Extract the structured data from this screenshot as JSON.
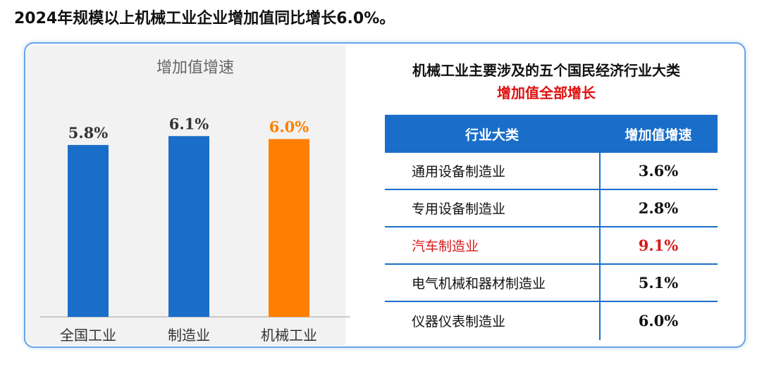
{
  "headline": "2024年规模以上机械工业企业增加值同比增长6.0%。",
  "chart_data": {
    "type": "bar",
    "title": "增加值增速",
    "categories": [
      "全国工业",
      "制造业",
      "机械工业"
    ],
    "values": [
      5.8,
      6.1,
      6.0
    ],
    "value_labels": [
      "5.8%",
      "6.1%",
      "6.0%"
    ],
    "colors": [
      "#1a6ec9",
      "#1a6ec9",
      "#ff7f00"
    ],
    "ylim": [
      0,
      6.7
    ],
    "grid": false
  },
  "right": {
    "title_line1": "机械工业主要涉及的五个国民经济行业大类",
    "title_line2": "增加值全部增长",
    "header": [
      "行业大类",
      "增加值增速"
    ],
    "rows": [
      {
        "name": "通用设备制造业",
        "value": "3.6%",
        "highlight": false
      },
      {
        "name": "专用设备制造业",
        "value": "2.8%",
        "highlight": false
      },
      {
        "name": "汽车制造业",
        "value": "9.1%",
        "highlight": true
      },
      {
        "name": "电气机械和器材制造业",
        "value": "5.1%",
        "highlight": false
      },
      {
        "name": "仪器仪表制造业",
        "value": "6.0%",
        "highlight": false
      }
    ]
  }
}
